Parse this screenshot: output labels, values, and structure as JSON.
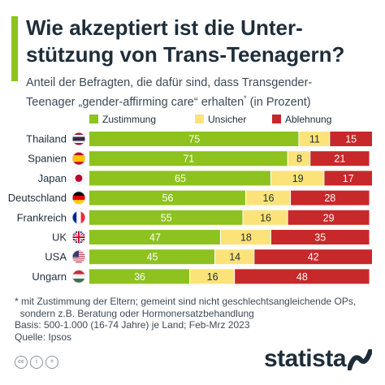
{
  "title_line1": "Wie akzeptiert ist die Unter-",
  "title_line2": "stützung von Trans-Teenagern?",
  "subtitle_line1": "Anteil der Befragten, die dafür sind, dass Transgender-",
  "subtitle_line2_a": "Teenager „gender-affirming care“ erhalten",
  "subtitle_line2_sup": "*",
  "subtitle_line2_b": " (in Prozent)",
  "legend": {
    "zustimmung": "Zustimmung",
    "unsicher": "Unsicher",
    "ablehnung": "Ablehnung"
  },
  "colors": {
    "zustimmung": "#8dc21f",
    "unsicher": "#fbe37a",
    "ablehnung": "#c7282a",
    "background": "#ffffff",
    "text": "#1f2d3a"
  },
  "chart_data": {
    "type": "bar",
    "orientation": "horizontal",
    "stacked": true,
    "categories": [
      "Thailand",
      "Spanien",
      "Japan",
      "Deutschland",
      "Frankreich",
      "UK",
      "USA",
      "Ungarn"
    ],
    "flags": [
      "thailand-flag",
      "spain-flag",
      "japan-flag",
      "germany-flag",
      "france-flag",
      "uk-flag",
      "usa-flag",
      "hungary-flag"
    ],
    "series": [
      {
        "name": "Zustimmung",
        "values": [
          75,
          71,
          65,
          56,
          55,
          47,
          45,
          36
        ]
      },
      {
        "name": "Unsicher",
        "values": [
          11,
          8,
          19,
          16,
          16,
          18,
          14,
          16
        ]
      },
      {
        "name": "Ablehnung",
        "values": [
          15,
          21,
          17,
          28,
          29,
          35,
          42,
          48
        ]
      }
    ],
    "xlim": [
      0,
      100
    ],
    "grid": false,
    "legend_position": "top"
  },
  "footnote": {
    "line1": "* mit Zustimmung der Eltern; gemeint sind nicht geschlechtsangleichende OPs,",
    "line2": "  sondern z.B. Beratung oder Hormonersatzbehandlung",
    "line3": "Basis: 500-1.000 (16-74 Jahre) je Land; Feb-Mrz 2023",
    "line4": "Quelle: Ipsos"
  },
  "cc_icons": [
    "cc",
    "i",
    "="
  ],
  "brand": "statista"
}
